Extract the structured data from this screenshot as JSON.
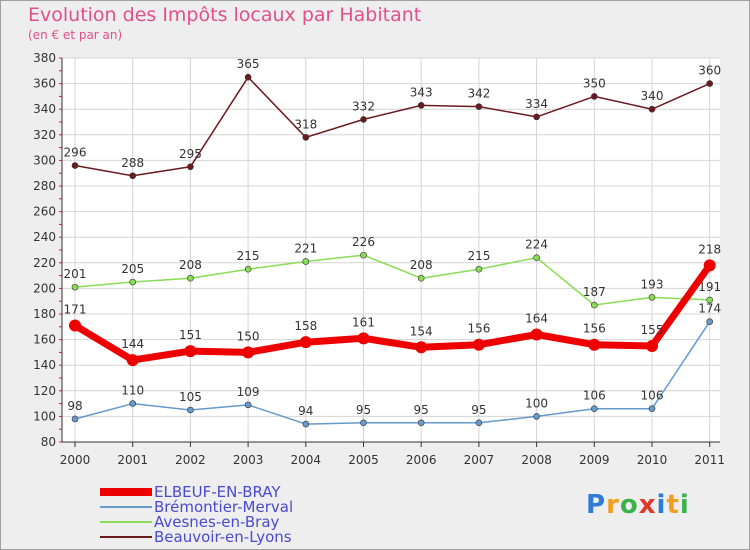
{
  "chart_data": {
    "type": "line",
    "title": "Evolution des Impôts locaux par Habitant",
    "subtitle": "(en € et par an)",
    "xlabel": "",
    "ylabel": "",
    "categories": [
      "2000",
      "2001",
      "2002",
      "2003",
      "2004",
      "2005",
      "2006",
      "2007",
      "2008",
      "2009",
      "2010",
      "2011"
    ],
    "ylim": [
      80,
      380
    ],
    "yticks": [
      80,
      100,
      120,
      140,
      160,
      180,
      200,
      220,
      240,
      260,
      280,
      300,
      320,
      340,
      360,
      380
    ],
    "grid": true,
    "legend_position": "bottom-left",
    "series": [
      {
        "name": "Beauvoir-en-Lyons",
        "color": "#6b1a1f",
        "values": [
          296,
          288,
          295,
          365,
          318,
          332,
          343,
          342,
          334,
          350,
          340,
          360
        ]
      },
      {
        "name": "Avesnes-en-Bray",
        "color": "#88dd55",
        "values": [
          201,
          205,
          208,
          215,
          221,
          226,
          208,
          215,
          224,
          187,
          193,
          191
        ]
      },
      {
        "name": "Brémontier-Merval",
        "color": "#6699cc",
        "values": [
          98,
          110,
          105,
          109,
          94,
          95,
          95,
          95,
          100,
          106,
          106,
          174
        ]
      },
      {
        "name": "ELBEUF-EN-BRAY",
        "color": "#ee0000",
        "values": [
          171,
          144,
          151,
          150,
          158,
          161,
          154,
          156,
          164,
          156,
          155,
          218
        ]
      }
    ]
  },
  "logo_text": [
    "P",
    "r",
    "o",
    "x",
    "i",
    "t",
    "i"
  ],
  "logo_colors": [
    "#2e7cd6",
    "#f0a020",
    "#3bb34a",
    "#e03a2a",
    "#2e7cd6",
    "#f0a020",
    "#3bb34a"
  ]
}
